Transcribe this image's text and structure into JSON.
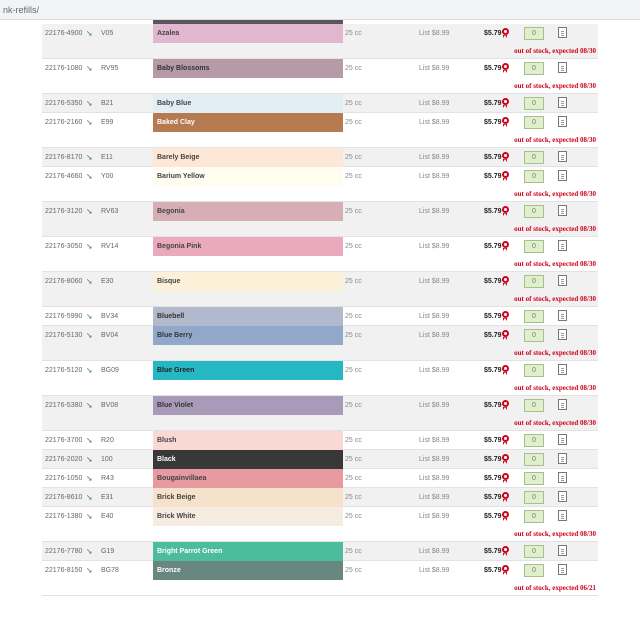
{
  "browser": {
    "url": "nk-refills/"
  },
  "top_swatch_color": "#5a5460",
  "columns": {
    "size_label": "25 cc",
    "list_label": "List $8.99",
    "price_label": "$5.79",
    "qty_value": "0"
  },
  "products": [
    {
      "sku": "22176-4900",
      "code": "V05",
      "name": "Azalea",
      "color": "#e0b7cf",
      "text_color": "#444444",
      "oos": "out of stock, expected 08/30"
    },
    {
      "sku": "22176-1080",
      "code": "RV95",
      "name": "Baby Blossoms",
      "color": "#b79aa7",
      "text_color": "#333333",
      "oos": "out of stock, expected 08/30"
    },
    {
      "sku": "22176-5350",
      "code": "B21",
      "name": "Baby Blue",
      "color": "#e2eef4",
      "text_color": "#444444",
      "oos": ""
    },
    {
      "sku": "22176-2160",
      "code": "E99",
      "name": "Baked Clay",
      "color": "#b57a4f",
      "text_color": "#ffffff",
      "oos": "out of stock, expected 08/30"
    },
    {
      "sku": "22176-8170",
      "code": "E11",
      "name": "Barely Beige",
      "color": "#fde8d8",
      "text_color": "#444444",
      "oos": ""
    },
    {
      "sku": "22176-4660",
      "code": "Y00",
      "name": "Barium Yellow",
      "color": "#fffdf0",
      "text_color": "#444444",
      "oos": "out of stock, expected 08/30"
    },
    {
      "sku": "22176-3120",
      "code": "RV63",
      "name": "Begonia",
      "color": "#d6afb6",
      "text_color": "#444444",
      "oos": "out of stock, expected 08/30"
    },
    {
      "sku": "22176-3050",
      "code": "RV14",
      "name": "Begonia Pink",
      "color": "#eaa9bd",
      "text_color": "#444444",
      "oos": "out of stock, expected 08/30"
    },
    {
      "sku": "22176-8060",
      "code": "E30",
      "name": "Bisque",
      "color": "#fdf0d8",
      "text_color": "#444444",
      "oos": "out of stock, expected 08/30"
    },
    {
      "sku": "22176-5990",
      "code": "BV34",
      "name": "Bluebell",
      "color": "#b2b9cc",
      "text_color": "#333333",
      "oos": ""
    },
    {
      "sku": "22176-5130",
      "code": "BV04",
      "name": "Blue Berry",
      "color": "#91a8cb",
      "text_color": "#333333",
      "oos": "out of stock, expected 08/30"
    },
    {
      "sku": "22176-5120",
      "code": "BG09",
      "name": "Blue Green",
      "color": "#25b7c4",
      "text_color": "#222222",
      "oos": "out of stock, expected 08/30"
    },
    {
      "sku": "22176-5380",
      "code": "BV08",
      "name": "Blue Violet",
      "color": "#a99ab9",
      "text_color": "#333333",
      "oos": "out of stock, expected 08/30"
    },
    {
      "sku": "22176-3700",
      "code": "R20",
      "name": "Blush",
      "color": "#fad8d3",
      "text_color": "#444444",
      "oos": ""
    },
    {
      "sku": "22176-2020",
      "code": "100",
      "name": "Black",
      "color": "#383838",
      "text_color": "#ffffff",
      "oos": ""
    },
    {
      "sku": "22176-1050",
      "code": "R43",
      "name": "Bougainvillaea",
      "color": "#e79aa0",
      "text_color": "#444444",
      "oos": ""
    },
    {
      "sku": "22176-8610",
      "code": "E31",
      "name": "Brick Beige",
      "color": "#f6e1cb",
      "text_color": "#444444",
      "oos": ""
    },
    {
      "sku": "22176-1380",
      "code": "E40",
      "name": "Brick White",
      "color": "#f5ebe1",
      "text_color": "#444444",
      "oos": "out of stock, expected 08/30"
    },
    {
      "sku": "22176-7780",
      "code": "G19",
      "name": "Bright Parrot Green",
      "color": "#4dbc9c",
      "text_color": "#ffffff",
      "oos": ""
    },
    {
      "sku": "22176-8150",
      "code": "BG78",
      "name": "Bronze",
      "color": "#68887f",
      "text_color": "#ffffff",
      "oos": "out of stock, expected 06/21"
    }
  ]
}
